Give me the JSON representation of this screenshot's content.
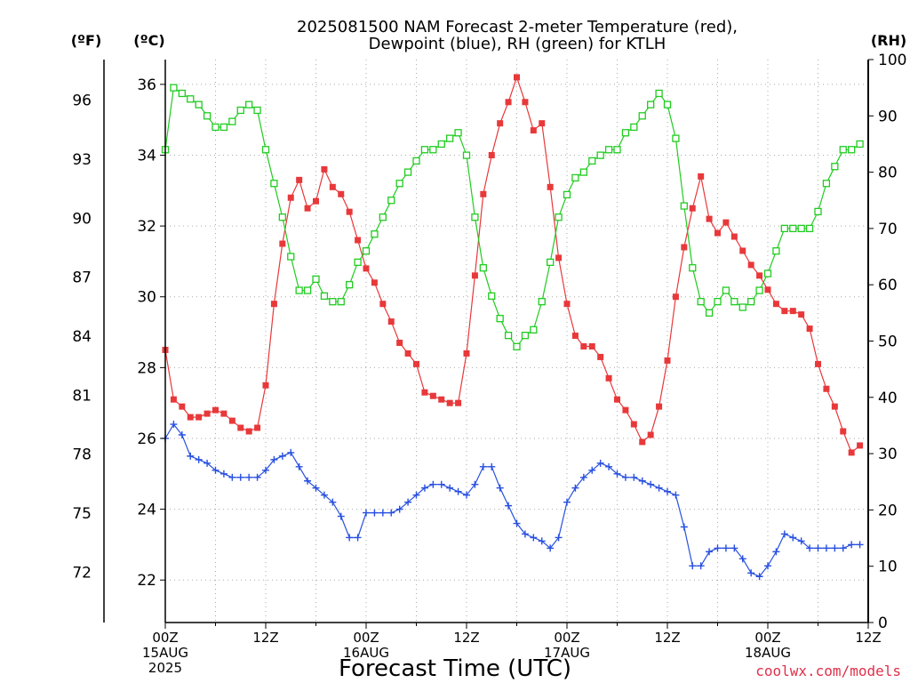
{
  "chart_data": {
    "type": "line",
    "title_line1": "2025081500 NAM Forecast 2-meter Temperature (red),",
    "title_line2": "Dewpoint (blue), RH (green) for KTLH",
    "xlabel": "Forecast Time (UTC)",
    "credit": "coolwx.com/models",
    "units": {
      "f": "(ºF)",
      "c": "(ºC)",
      "rh": "(RH)"
    },
    "x_unit": "forecast hour",
    "xlim": [
      0,
      84
    ],
    "ylim_c": [
      20.8,
      36.7
    ],
    "ylim_rh": [
      0,
      100
    ],
    "grid": true,
    "x_ticks": [
      {
        "hour": 0,
        "lines": [
          "00Z",
          "15AUG",
          "2025"
        ]
      },
      {
        "hour": 12,
        "lines": [
          "12Z"
        ]
      },
      {
        "hour": 24,
        "lines": [
          "00Z",
          "16AUG"
        ]
      },
      {
        "hour": 36,
        "lines": [
          "12Z"
        ]
      },
      {
        "hour": 48,
        "lines": [
          "00Z",
          "17AUG"
        ]
      },
      {
        "hour": 60,
        "lines": [
          "12Z"
        ]
      },
      {
        "hour": 72,
        "lines": [
          "00Z",
          "18AUG"
        ]
      },
      {
        "hour": 84,
        "lines": [
          "12Z"
        ]
      }
    ],
    "c_ticks": [
      22,
      24,
      26,
      28,
      30,
      32,
      34,
      36
    ],
    "f_ticks": [
      72,
      75,
      78,
      81,
      84,
      87,
      90,
      93,
      96
    ],
    "rh_ticks": [
      0,
      10,
      20,
      30,
      40,
      50,
      60,
      70,
      80,
      90,
      100
    ],
    "colors": {
      "temperature": "#e8383a",
      "dewpoint": "#2850e0",
      "rh": "#20cc20",
      "credit": "#e0304a",
      "grid": "#aaaaaa"
    },
    "series": [
      {
        "key": "temperature",
        "unit": "°C",
        "marker": "filled-square",
        "values": [
          28.5,
          27.1,
          26.9,
          26.6,
          26.6,
          26.7,
          26.8,
          26.7,
          26.5,
          26.3,
          26.2,
          26.3,
          27.5,
          29.8,
          31.5,
          32.8,
          33.3,
          32.5,
          32.7,
          33.6,
          33.1,
          32.9,
          32.4,
          31.6,
          30.8,
          30.4,
          29.8,
          29.3,
          28.7,
          28.4,
          28.1,
          27.3,
          27.2,
          27.1,
          27.0,
          27.0,
          28.4,
          30.6,
          32.9,
          34.0,
          34.9,
          35.5,
          36.2,
          35.5,
          34.7,
          34.9,
          33.1,
          31.1,
          29.8,
          28.9,
          28.6,
          28.6,
          28.3,
          27.7,
          27.1,
          26.8,
          26.4,
          25.9,
          26.1,
          26.9,
          28.2,
          30.0,
          31.4,
          32.5,
          33.4,
          32.2,
          31.8,
          32.1,
          31.7,
          31.3,
          30.9,
          30.6,
          30.2,
          29.8,
          29.6,
          29.6,
          29.5,
          29.1,
          28.1,
          27.4,
          26.9,
          26.2,
          25.6,
          25.8
        ]
      },
      {
        "key": "dewpoint",
        "unit": "°C",
        "marker": "plus",
        "values": [
          26.0,
          26.4,
          26.1,
          25.5,
          25.4,
          25.3,
          25.1,
          25.0,
          24.9,
          24.9,
          24.9,
          24.9,
          25.1,
          25.4,
          25.5,
          25.6,
          25.2,
          24.8,
          24.6,
          24.4,
          24.2,
          23.8,
          23.2,
          23.2,
          23.9,
          23.9,
          23.9,
          23.9,
          24.0,
          24.2,
          24.4,
          24.6,
          24.7,
          24.7,
          24.6,
          24.5,
          24.4,
          24.7,
          25.2,
          25.2,
          24.6,
          24.1,
          23.6,
          23.3,
          23.2,
          23.1,
          22.9,
          23.2,
          24.2,
          24.6,
          24.9,
          25.1,
          25.3,
          25.2,
          25.0,
          24.9,
          24.9,
          24.8,
          24.7,
          24.6,
          24.5,
          24.4,
          23.5,
          22.4,
          22.4,
          22.8,
          22.9,
          22.9,
          22.9,
          22.6,
          22.2,
          22.1,
          22.4,
          22.8,
          23.3,
          23.2,
          23.1,
          22.9,
          22.9,
          22.9,
          22.9,
          22.9,
          23.0,
          23.0
        ]
      },
      {
        "key": "rh",
        "unit": "%",
        "marker": "open-square",
        "values": [
          84,
          95,
          94,
          93,
          92,
          90,
          88,
          88,
          89,
          91,
          92,
          91,
          84,
          78,
          72,
          65,
          59,
          59,
          61,
          58,
          57,
          57,
          60,
          64,
          66,
          69,
          72,
          75,
          78,
          80,
          82,
          84,
          84,
          85,
          86,
          87,
          83,
          72,
          63,
          58,
          54,
          51,
          49,
          51,
          52,
          57,
          64,
          72,
          76,
          79,
          80,
          82,
          83,
          84,
          84,
          87,
          88,
          90,
          92,
          94,
          92,
          86,
          74,
          63,
          57,
          55,
          57,
          59,
          57,
          56,
          57,
          59,
          62,
          66,
          70,
          70,
          70,
          70,
          73,
          78,
          81,
          84,
          84,
          85
        ]
      }
    ]
  }
}
